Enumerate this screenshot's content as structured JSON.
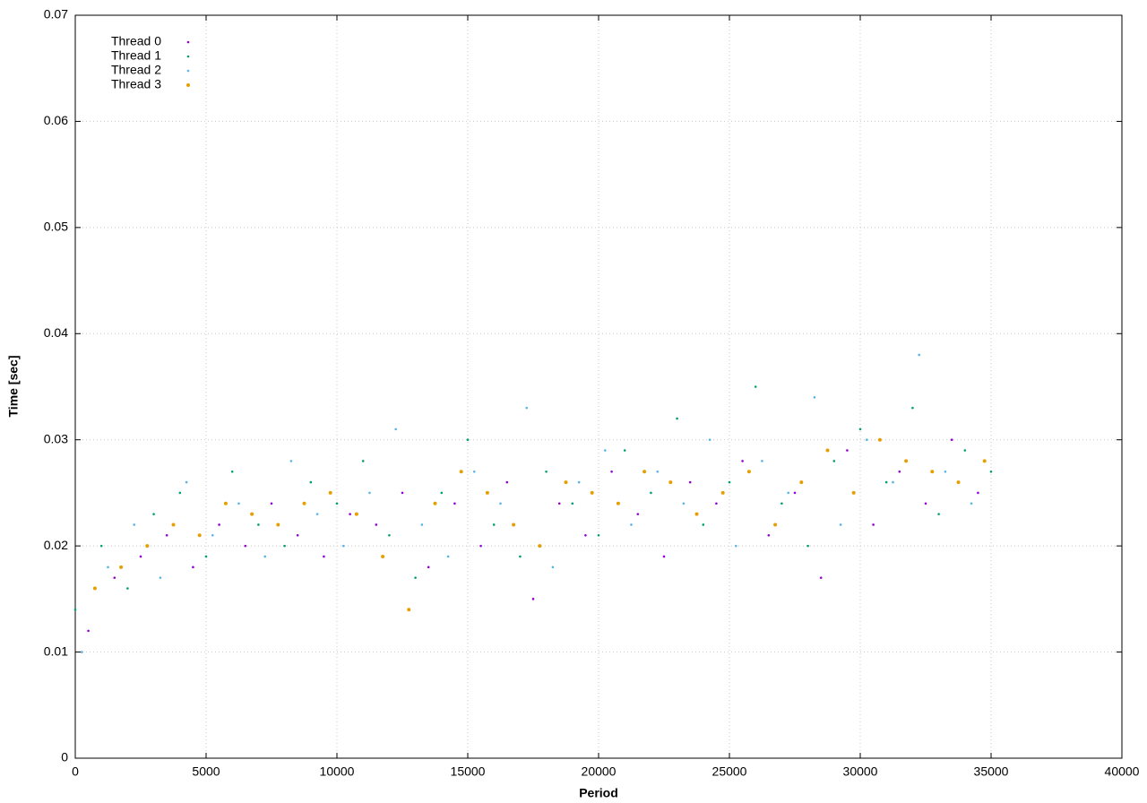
{
  "chart_data": {
    "type": "scatter",
    "x_label": "Period",
    "y_label": "Time [sec]",
    "xlim": [
      0,
      40000
    ],
    "ylim": [
      0,
      0.07
    ],
    "xticks": [
      0,
      5000,
      10000,
      15000,
      20000,
      25000,
      30000,
      35000,
      40000
    ],
    "yticks": [
      0,
      0.01,
      0.02,
      0.03,
      0.04,
      0.05,
      0.06,
      0.07
    ],
    "grid": true,
    "legend": "top-left",
    "series": [
      {
        "name": "Thread 0",
        "color": "#9400d3",
        "x": [
          500,
          1500,
          2500,
          3500,
          4500,
          5500,
          6500,
          7500,
          8500,
          9500,
          10500,
          11500,
          12500,
          13500,
          14500,
          15500,
          16500,
          17500,
          18500,
          19500,
          20500,
          21500,
          22500,
          23500,
          24500,
          25500,
          26500,
          27500,
          28500,
          29500,
          30500,
          31500,
          32500,
          33500,
          34500
        ],
        "values": [
          0.012,
          0.017,
          0.019,
          0.021,
          0.018,
          0.022,
          0.02,
          0.024,
          0.021,
          0.019,
          0.023,
          0.022,
          0.025,
          0.018,
          0.024,
          0.02,
          0.026,
          0.015,
          0.024,
          0.021,
          0.027,
          0.023,
          0.019,
          0.026,
          0.024,
          0.028,
          0.021,
          0.025,
          0.017,
          0.029,
          0.022,
          0.027,
          0.024,
          0.03,
          0.025
        ]
      },
      {
        "name": "Thread 1",
        "color": "#009e73",
        "x": [
          0,
          1000,
          2000,
          3000,
          4000,
          5000,
          6000,
          7000,
          8000,
          9000,
          10000,
          11000,
          12000,
          13000,
          14000,
          15000,
          16000,
          17000,
          18000,
          19000,
          20000,
          21000,
          22000,
          23000,
          24000,
          25000,
          26000,
          27000,
          28000,
          29000,
          30000,
          31000,
          32000,
          33000,
          34000,
          35000
        ],
        "values": [
          0.014,
          0.02,
          0.016,
          0.023,
          0.025,
          0.019,
          0.027,
          0.022,
          0.02,
          0.026,
          0.024,
          0.028,
          0.021,
          0.017,
          0.025,
          0.03,
          0.022,
          0.019,
          0.027,
          0.024,
          0.021,
          0.029,
          0.025,
          0.032,
          0.022,
          0.026,
          0.035,
          0.024,
          0.02,
          0.028,
          0.031,
          0.026,
          0.033,
          0.023,
          0.029,
          0.027
        ]
      },
      {
        "name": "Thread 2",
        "color": "#56b4e9",
        "x": [
          250,
          1250,
          2250,
          3250,
          4250,
          5250,
          6250,
          7250,
          8250,
          9250,
          10250,
          11250,
          12250,
          13250,
          14250,
          15250,
          16250,
          17250,
          18250,
          19250,
          20250,
          21250,
          22250,
          23250,
          24250,
          25250,
          26250,
          27250,
          28250,
          29250,
          30250,
          31250,
          32250,
          33250,
          34250
        ],
        "values": [
          0.01,
          0.018,
          0.022,
          0.017,
          0.026,
          0.021,
          0.024,
          0.019,
          0.028,
          0.023,
          0.02,
          0.025,
          0.031,
          0.022,
          0.019,
          0.027,
          0.024,
          0.033,
          0.018,
          0.026,
          0.029,
          0.022,
          0.027,
          0.024,
          0.03,
          0.02,
          0.028,
          0.025,
          0.034,
          0.022,
          0.03,
          0.026,
          0.038,
          0.027,
          0.024
        ]
      },
      {
        "name": "Thread 3",
        "color": "#e69f00",
        "x": [
          750,
          1750,
          2750,
          3750,
          4750,
          5750,
          6750,
          7750,
          8750,
          9750,
          10750,
          11750,
          12750,
          13750,
          14750,
          15750,
          16750,
          17750,
          18750,
          19750,
          20750,
          21750,
          22750,
          23750,
          24750,
          25750,
          26750,
          27750,
          28750,
          29750,
          30750,
          31750,
          32750,
          33750,
          34750
        ],
        "values": [
          0.016,
          0.018,
          0.02,
          0.022,
          0.021,
          0.024,
          0.023,
          0.022,
          0.024,
          0.025,
          0.023,
          0.019,
          0.014,
          0.024,
          0.027,
          0.025,
          0.022,
          0.02,
          0.026,
          0.025,
          0.024,
          0.027,
          0.026,
          0.023,
          0.025,
          0.027,
          0.022,
          0.026,
          0.029,
          0.025,
          0.03,
          0.028,
          0.027,
          0.026,
          0.028
        ]
      }
    ]
  }
}
